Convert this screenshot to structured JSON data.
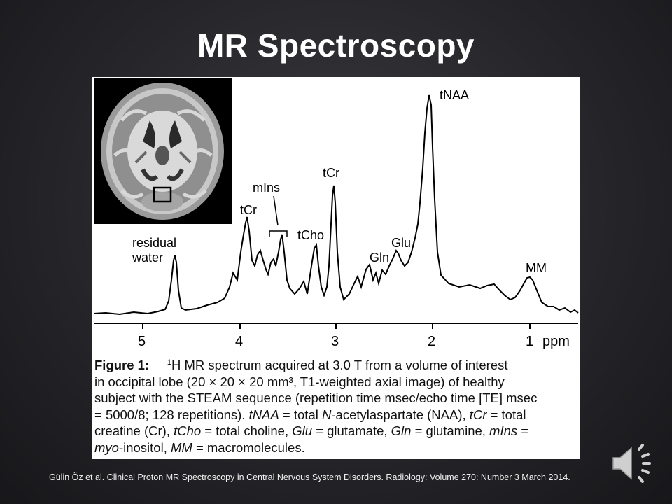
{
  "slide": {
    "title": "MR Spectroscopy",
    "citation": "Gülin Öz et al. Clinical Proton MR Spectroscopy in Central Nervous System Disorders. Radiology: Volume 270: Number 3 March 2014."
  },
  "figure": {
    "peak_labels": {
      "tNAA": "tNAA",
      "tCr_high": "tCr",
      "mIns": "mIns",
      "tCr_low": "tCr",
      "tCho": "tCho",
      "Glu": "Glu",
      "Gln": "Gln",
      "residual_water_1": "residual",
      "residual_water_2": "water",
      "MM": "MM"
    },
    "axis": {
      "ticks": [
        "5",
        "4",
        "3",
        "2",
        "1"
      ],
      "unit": "ppm"
    },
    "caption": {
      "label": "Figure 1:",
      "sup": "1",
      "line1": "H MR spectrum acquired at 3.0 T from a volume of interest",
      "line2": "in occipital lobe (20 × 20 × 20 mm³, T1-weighted axial image) of healthy",
      "line3": "subject with the STEAM sequence (repetition time msec/echo time [TE] msec",
      "line4a": "= 5000/8; 128 repetitions). ",
      "line4b_i": "tNAA",
      "line4c": " = total ",
      "line4d_i": "N",
      "line4e": "-acetylaspartate (NAA), ",
      "line4f_i": "tCr",
      "line4g": " = total",
      "line5a": "creatine (Cr), ",
      "line5b_i": "tCho",
      "line5c": " = total choline, ",
      "line5d_i": "Glu",
      "line5e": " = glutamate, ",
      "line5f_i": "Gln",
      "line5g": " = glutamine, ",
      "line5h_i": "mIns",
      "line5i": " =",
      "line6a_i": "myo",
      "line6b": "-inositol, ",
      "line6c_i": "MM",
      "line6d": " = macromolecules."
    }
  },
  "colors": {
    "background": "#1f1f22",
    "text": "#ffffff",
    "figure_bg": "#ffffff",
    "speaker_icon": "#cfcfcf"
  },
  "icons": {
    "speaker": "speaker-icon"
  }
}
